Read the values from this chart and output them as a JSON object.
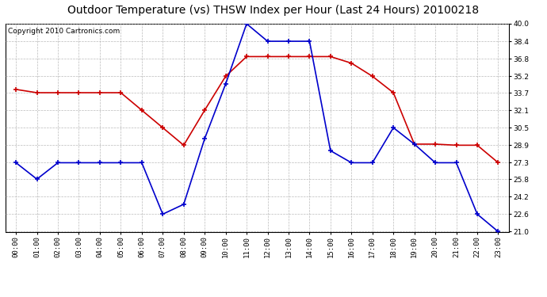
{
  "title": "Outdoor Temperature (vs) THSW Index per Hour (Last 24 Hours) 20100218",
  "copyright": "Copyright 2010 Cartronics.com",
  "hours": [
    "00:00",
    "01:00",
    "02:00",
    "03:00",
    "04:00",
    "05:00",
    "06:00",
    "07:00",
    "08:00",
    "09:00",
    "10:00",
    "11:00",
    "12:00",
    "13:00",
    "14:00",
    "15:00",
    "16:00",
    "17:00",
    "18:00",
    "19:00",
    "20:00",
    "21:00",
    "22:00",
    "23:00"
  ],
  "temp_red": [
    34.0,
    33.7,
    33.7,
    33.7,
    33.7,
    33.7,
    32.1,
    30.5,
    28.9,
    32.1,
    35.2,
    37.0,
    37.0,
    37.0,
    37.0,
    37.0,
    36.4,
    35.2,
    33.7,
    29.0,
    29.0,
    28.9,
    28.9,
    27.3
  ],
  "thsw_blue": [
    27.3,
    25.8,
    27.3,
    27.3,
    27.3,
    27.3,
    27.3,
    22.6,
    23.5,
    29.5,
    34.5,
    40.0,
    38.4,
    38.4,
    38.4,
    28.4,
    27.3,
    27.3,
    30.5,
    29.0,
    27.3,
    27.3,
    22.6,
    21.0
  ],
  "ymin": 21.0,
  "ymax": 40.0,
  "yticks": [
    21.0,
    22.6,
    24.2,
    25.8,
    27.3,
    28.9,
    30.5,
    32.1,
    33.7,
    35.2,
    36.8,
    38.4,
    40.0
  ],
  "red_color": "#cc0000",
  "blue_color": "#0000cc",
  "background_color": "#ffffff",
  "grid_color": "#aaaaaa",
  "title_fontsize": 10,
  "copyright_fontsize": 6.5
}
